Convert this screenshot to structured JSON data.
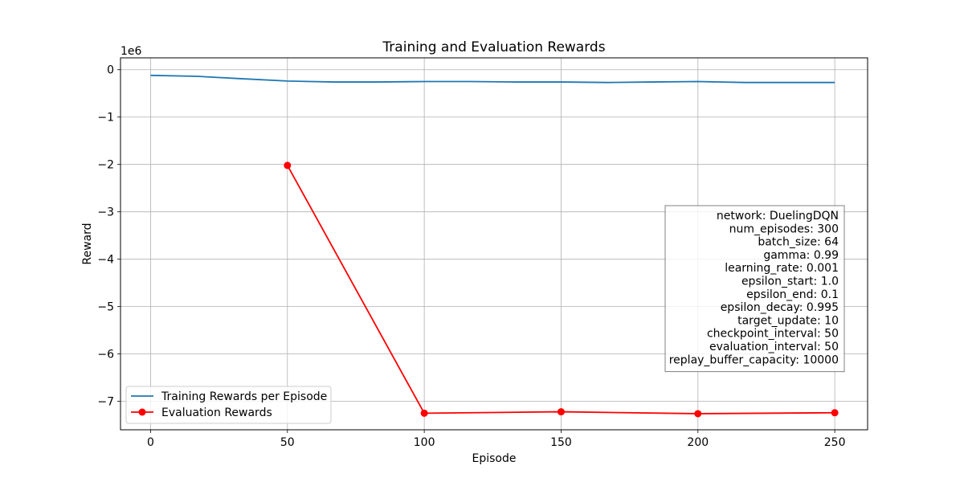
{
  "chart_data": {
    "type": "line",
    "title": "Training and Evaluation Rewards",
    "xlabel": "Episode",
    "ylabel": "Reward",
    "y_scale_note": "1e6",
    "xlim": [
      -11,
      262
    ],
    "ylim": [
      -7.6,
      0.25
    ],
    "x_ticks": [
      0,
      50,
      100,
      150,
      200,
      250
    ],
    "y_ticks": [
      0,
      -1,
      -2,
      -3,
      -4,
      -5,
      -6,
      -7
    ],
    "y_tick_labels": [
      "0",
      "−1",
      "−2",
      "−3",
      "−4",
      "−5",
      "−6",
      "−7"
    ],
    "grid": true,
    "legend_position": "lower-left",
    "series": [
      {
        "name": "Training Rewards per Episode",
        "color": "#1f77b4",
        "marker": "none",
        "x": [
          0,
          17,
          33,
          50,
          67,
          83,
          100,
          117,
          133,
          150,
          167,
          183,
          200,
          217,
          233,
          250
        ],
        "y": [
          -0.12,
          -0.14,
          -0.19,
          -0.24,
          -0.26,
          -0.26,
          -0.25,
          -0.25,
          -0.26,
          -0.26,
          -0.27,
          -0.26,
          -0.25,
          -0.27,
          -0.27,
          -0.27
        ]
      },
      {
        "name": "Evaluation Rewards",
        "color": "#ff0000",
        "marker": "circle",
        "x": [
          50,
          100,
          150,
          200,
          250
        ],
        "y": [
          -2.02,
          -7.25,
          -7.22,
          -7.26,
          -7.24
        ]
      }
    ],
    "params_box": {
      "position": "right",
      "lines": [
        "network: DuelingDQN",
        "num_episodes: 300",
        "batch_size: 64",
        "gamma: 0.99",
        "learning_rate: 0.001",
        "epsilon_start: 1.0",
        "epsilon_end: 0.1",
        "epsilon_decay: 0.995",
        "target_update: 10",
        "checkpoint_interval: 50",
        "evaluation_interval: 50",
        "replay_buffer_capacity: 10000"
      ]
    }
  }
}
